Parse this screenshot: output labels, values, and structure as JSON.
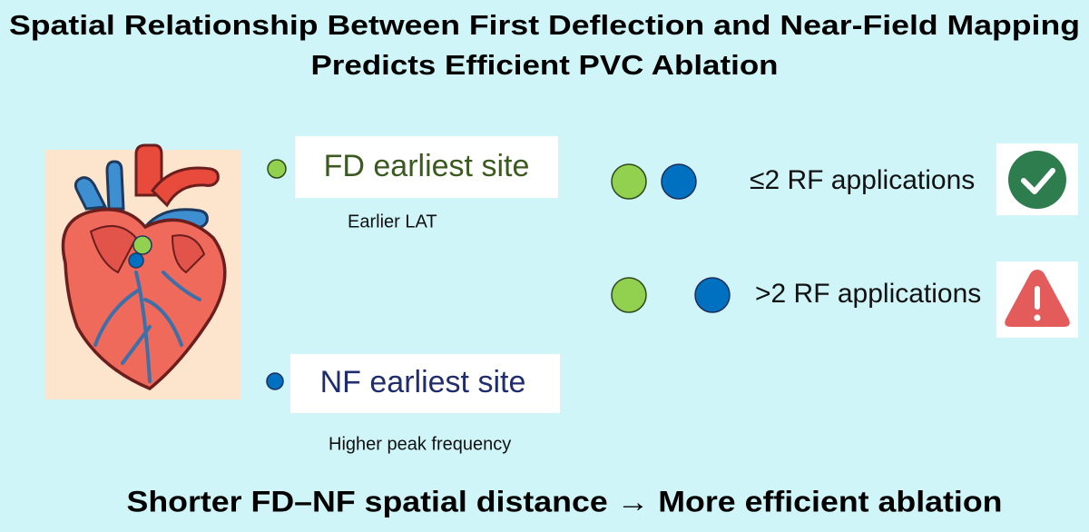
{
  "title": {
    "lines": [
      "Spatial Relationship Between First Deflection and Near-Field Mapping",
      "Predicts Efficient PVC Ablation"
    ]
  },
  "legend": {
    "fd": {
      "label": "FD earliest site",
      "note": "Earlier LAT"
    },
    "nf": {
      "label": "NF earliest site",
      "note": "Higher peak frequency"
    }
  },
  "outcomes": [
    {
      "label": "≤2 RF applications"
    },
    {
      "label": ">2 RF applications"
    }
  ],
  "footer": "Shorter FD–NF spatial distance → More efficient ablation"
}
